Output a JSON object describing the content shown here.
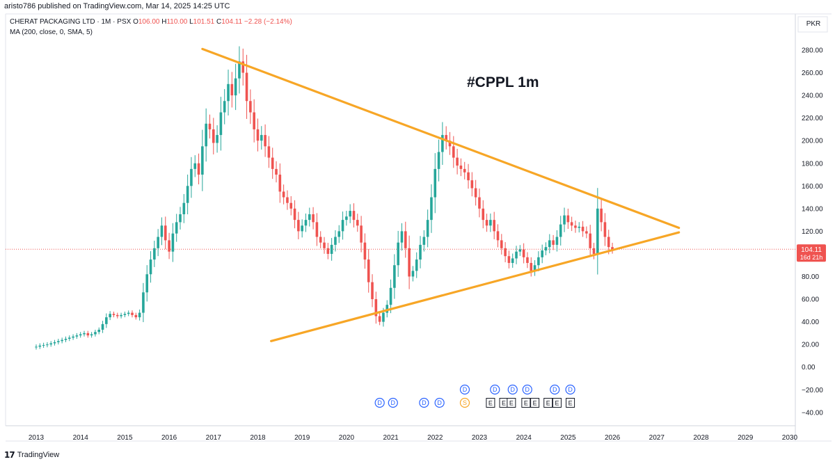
{
  "header": {
    "publisher_text": "aristo786 published on TradingView.com, Mar 14, 2025 14:25 UTC"
  },
  "legend": {
    "symbol": "CHERAT PACKAGING LTD · 1M · PSX",
    "o_label": "O",
    "o_value": "106.00",
    "h_label": "H",
    "h_value": "110.00",
    "l_label": "L",
    "l_value": "101.51",
    "c_label": "C",
    "c_value": "104.11",
    "change": "−2.28 (−2.14%)",
    "indicator": "MA (200, close, 0, SMA, 5)"
  },
  "annotation": {
    "title": "#CPPL 1m"
  },
  "price_axis": {
    "currency": "PKR"
  },
  "last_price": {
    "value": "104.11",
    "countdown": "16d 21h"
  },
  "footer": {
    "logo_text": "TradingView"
  },
  "colors": {
    "up": "#26a69a",
    "down": "#ef5350",
    "trendline": "#f7a626",
    "dividend": "#2962ff",
    "split": "#f7a626",
    "earnings": "#131722"
  },
  "chart_data": {
    "type": "candlestick",
    "x_axis": {
      "tick_labels": [
        "2013",
        "2014",
        "2015",
        "2016",
        "2017",
        "2018",
        "2019",
        "2020",
        "2021",
        "2022",
        "2023",
        "2024",
        "2025",
        "2026",
        "2027",
        "2028",
        "2029",
        "2030"
      ]
    },
    "y_axis": {
      "range": [
        -50,
        290
      ],
      "tick_labels": [
        "280.00",
        "260.00",
        "240.00",
        "220.00",
        "200.00",
        "180.00",
        "160.00",
        "140.00",
        "120.00",
        "100.00",
        "80.00",
        "60.00",
        "40.00",
        "20.00",
        "0.00",
        "−20.00",
        "−40.00"
      ],
      "tick_values": [
        280,
        260,
        240,
        220,
        200,
        180,
        160,
        140,
        120,
        100,
        80,
        60,
        40,
        20,
        0,
        -20,
        -40
      ]
    },
    "candles_close": [
      18,
      19,
      19.5,
      20,
      21,
      22,
      23,
      24,
      25,
      26,
      27,
      28,
      29,
      30,
      28,
      29,
      31,
      33,
      38,
      44,
      47,
      46,
      45,
      46,
      47,
      48,
      46,
      44,
      48,
      66,
      82,
      95,
      105,
      115,
      125,
      112,
      102,
      118,
      128,
      135,
      145,
      160,
      175,
      180,
      170,
      195,
      215,
      210,
      198,
      205,
      225,
      235,
      250,
      240,
      255,
      270,
      260,
      235,
      225,
      210,
      200,
      205,
      195,
      185,
      175,
      170,
      155,
      150,
      145,
      140,
      130,
      120,
      125,
      130,
      135,
      128,
      115,
      110,
      105,
      100,
      108,
      115,
      120,
      130,
      133,
      138,
      130,
      125,
      110,
      95,
      75,
      60,
      45,
      40,
      48,
      55,
      70,
      90,
      110,
      120,
      105,
      80,
      85,
      95,
      108,
      115,
      130,
      150,
      175,
      190,
      205,
      200,
      195,
      185,
      178,
      175,
      172,
      165,
      158,
      150,
      140,
      130,
      125,
      130,
      120,
      112,
      105,
      98,
      92,
      96,
      102,
      104,
      97,
      92,
      85,
      90,
      97,
      103,
      106,
      112,
      108,
      115,
      126,
      134,
      128,
      125,
      123,
      124,
      120,
      118,
      105,
      100,
      140,
      128,
      115,
      106,
      104
    ],
    "start_year": 2013.0,
    "trendlines": [
      {
        "name": "upper",
        "from": [
          2016.75,
          281
        ],
        "to": [
          2027.5,
          123
        ]
      },
      {
        "name": "lower",
        "from": [
          2018.3,
          23
        ],
        "to": [
          2027.5,
          119
        ]
      }
    ],
    "markers": [
      {
        "type": "D",
        "x": 2020.75,
        "row": 2
      },
      {
        "type": "D",
        "x": 2021.05,
        "row": 2
      },
      {
        "type": "D",
        "x": 2021.75,
        "row": 2
      },
      {
        "type": "D",
        "x": 2022.1,
        "row": 2
      },
      {
        "type": "D",
        "x": 2022.67,
        "row": 1
      },
      {
        "type": "S",
        "x": 2022.67,
        "row": 2
      },
      {
        "type": "D",
        "x": 2023.35,
        "row": 1
      },
      {
        "type": "E",
        "x": 2023.25,
        "row": 2
      },
      {
        "type": "E",
        "x": 2023.55,
        "row": 2
      },
      {
        "type": "E",
        "x": 2023.72,
        "row": 2
      },
      {
        "type": "D",
        "x": 2023.75,
        "row": 1
      },
      {
        "type": "D",
        "x": 2024.08,
        "row": 1
      },
      {
        "type": "E",
        "x": 2024.05,
        "row": 2
      },
      {
        "type": "E",
        "x": 2024.25,
        "row": 2
      },
      {
        "type": "D",
        "x": 2024.7,
        "row": 1
      },
      {
        "type": "E",
        "x": 2024.55,
        "row": 2
      },
      {
        "type": "E",
        "x": 2024.75,
        "row": 2
      },
      {
        "type": "D",
        "x": 2025.05,
        "row": 1
      },
      {
        "type": "E",
        "x": 2025.05,
        "row": 2
      }
    ]
  }
}
